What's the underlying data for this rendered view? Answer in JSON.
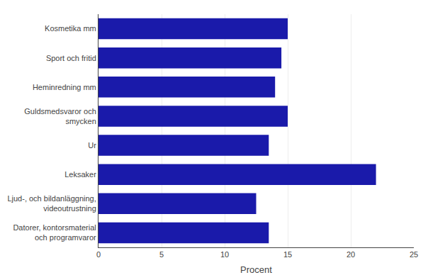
{
  "chart_data": {
    "type": "bar",
    "orientation": "horizontal",
    "categories": [
      "Datorer, kontorsmaterial\noch programvaror",
      "Ljud-, och bildanläggning,\nvideoutrustning",
      "Leksaker",
      "Ur",
      "Guldsmedsvaror och\nsmycken",
      "Heminredning mm",
      "Sport och fritid",
      "Kosmetika mm"
    ],
    "values": [
      13.5,
      12.5,
      22,
      13.5,
      15,
      14,
      14.5,
      15
    ],
    "color": "#1a1aaa",
    "xlabel": "Procent",
    "xlim": [
      0,
      25
    ],
    "xticks": [
      0,
      5,
      10,
      15,
      20,
      25
    ],
    "grid": true
  }
}
